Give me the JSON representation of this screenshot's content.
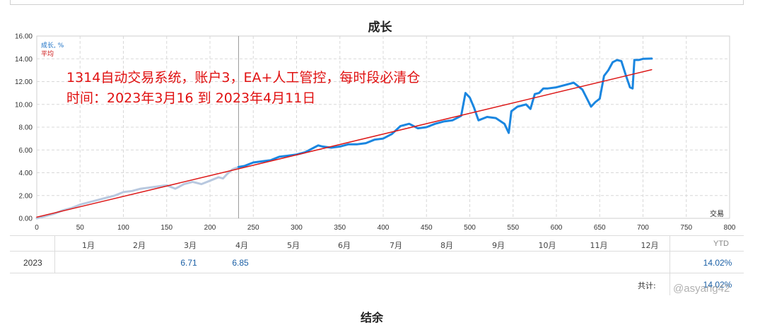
{
  "chart_data": {
    "type": "line",
    "title": "成长",
    "legend": [
      "成长, %",
      "平均"
    ],
    "xlabel": "交易",
    "ylabel": "",
    "xlim": [
      0,
      800
    ],
    "ylim": [
      0,
      16
    ],
    "grid": true,
    "x_ticks": [
      "0",
      "50",
      "100",
      "150",
      "200",
      "250",
      "300",
      "350",
      "400",
      "450",
      "500",
      "550",
      "600",
      "650",
      "700",
      "750",
      "800"
    ],
    "y_ticks": [
      "0.00",
      "2.00",
      "4.00",
      "6.00",
      "8.00",
      "10.00",
      "12.00",
      "14.00",
      "16.00"
    ],
    "history_marker_x": 233,
    "series": [
      {
        "name": "成长, %",
        "segment": "history",
        "color": "#b8c8df",
        "x": [
          0,
          10,
          20,
          30,
          40,
          50,
          60,
          70,
          80,
          90,
          100,
          110,
          120,
          130,
          140,
          150,
          160,
          170,
          180,
          190,
          200,
          210,
          215,
          220,
          226,
          233
        ],
        "y": [
          0.0,
          0.2,
          0.4,
          0.7,
          0.9,
          1.2,
          1.4,
          1.6,
          1.8,
          2.0,
          2.3,
          2.4,
          2.6,
          2.7,
          2.8,
          2.9,
          2.6,
          3.0,
          3.2,
          3.0,
          3.3,
          3.6,
          3.5,
          3.9,
          4.3,
          4.5
        ]
      },
      {
        "name": "成长, %",
        "segment": "current",
        "color": "#1a86e0",
        "x": [
          233,
          240,
          250,
          260,
          270,
          280,
          290,
          300,
          310,
          320,
          325,
          330,
          340,
          350,
          360,
          370,
          380,
          390,
          400,
          410,
          420,
          430,
          440,
          450,
          460,
          470,
          480,
          490,
          495,
          500,
          505,
          510,
          520,
          530,
          540,
          545,
          548,
          555,
          565,
          570,
          575,
          580,
          585,
          590,
          600,
          610,
          620,
          630,
          640,
          645,
          650,
          655,
          660,
          665,
          670,
          675,
          680,
          685,
          688,
          690,
          695,
          700,
          710
        ],
        "y": [
          4.5,
          4.6,
          4.9,
          5.0,
          5.1,
          5.4,
          5.5,
          5.6,
          5.8,
          6.2,
          6.4,
          6.3,
          6.2,
          6.3,
          6.5,
          6.5,
          6.6,
          6.9,
          7.0,
          7.4,
          8.1,
          8.3,
          7.9,
          8.0,
          8.3,
          8.5,
          8.6,
          9.0,
          11.0,
          10.6,
          9.7,
          8.6,
          8.9,
          8.8,
          8.3,
          7.5,
          9.4,
          9.8,
          10.0,
          9.6,
          10.9,
          11.0,
          11.4,
          11.4,
          11.5,
          11.7,
          11.9,
          11.3,
          9.8,
          10.2,
          10.5,
          12.5,
          13.0,
          13.7,
          13.9,
          13.8,
          12.6,
          11.5,
          11.4,
          13.9,
          13.9,
          14.0,
          14.02
        ]
      },
      {
        "name": "平均",
        "color": "#dd1a1a",
        "x": [
          0,
          710
        ],
        "y": [
          0.1,
          13.05
        ]
      }
    ]
  },
  "annotation": {
    "line1": "1314自动交易系统，账户3，EA+人工管控，每时段必清仓",
    "line2": "时间：2023年3月16 到 2023年4月11日"
  },
  "table": {
    "months": [
      "1月",
      "2月",
      "3月",
      "4月",
      "5月",
      "6月",
      "7月",
      "8月",
      "9月",
      "10月",
      "11月",
      "12月"
    ],
    "ytd_header": "YTD",
    "year": "2023",
    "values": [
      "",
      "",
      "6.71",
      "6.85",
      "",
      "",
      "",
      "",
      "",
      "",
      "",
      ""
    ],
    "ytd_value": "14.02%",
    "total_label": "共计:",
    "total_value": "14.02%"
  },
  "next_section_title": "结余",
  "watermark": "@asyang42"
}
